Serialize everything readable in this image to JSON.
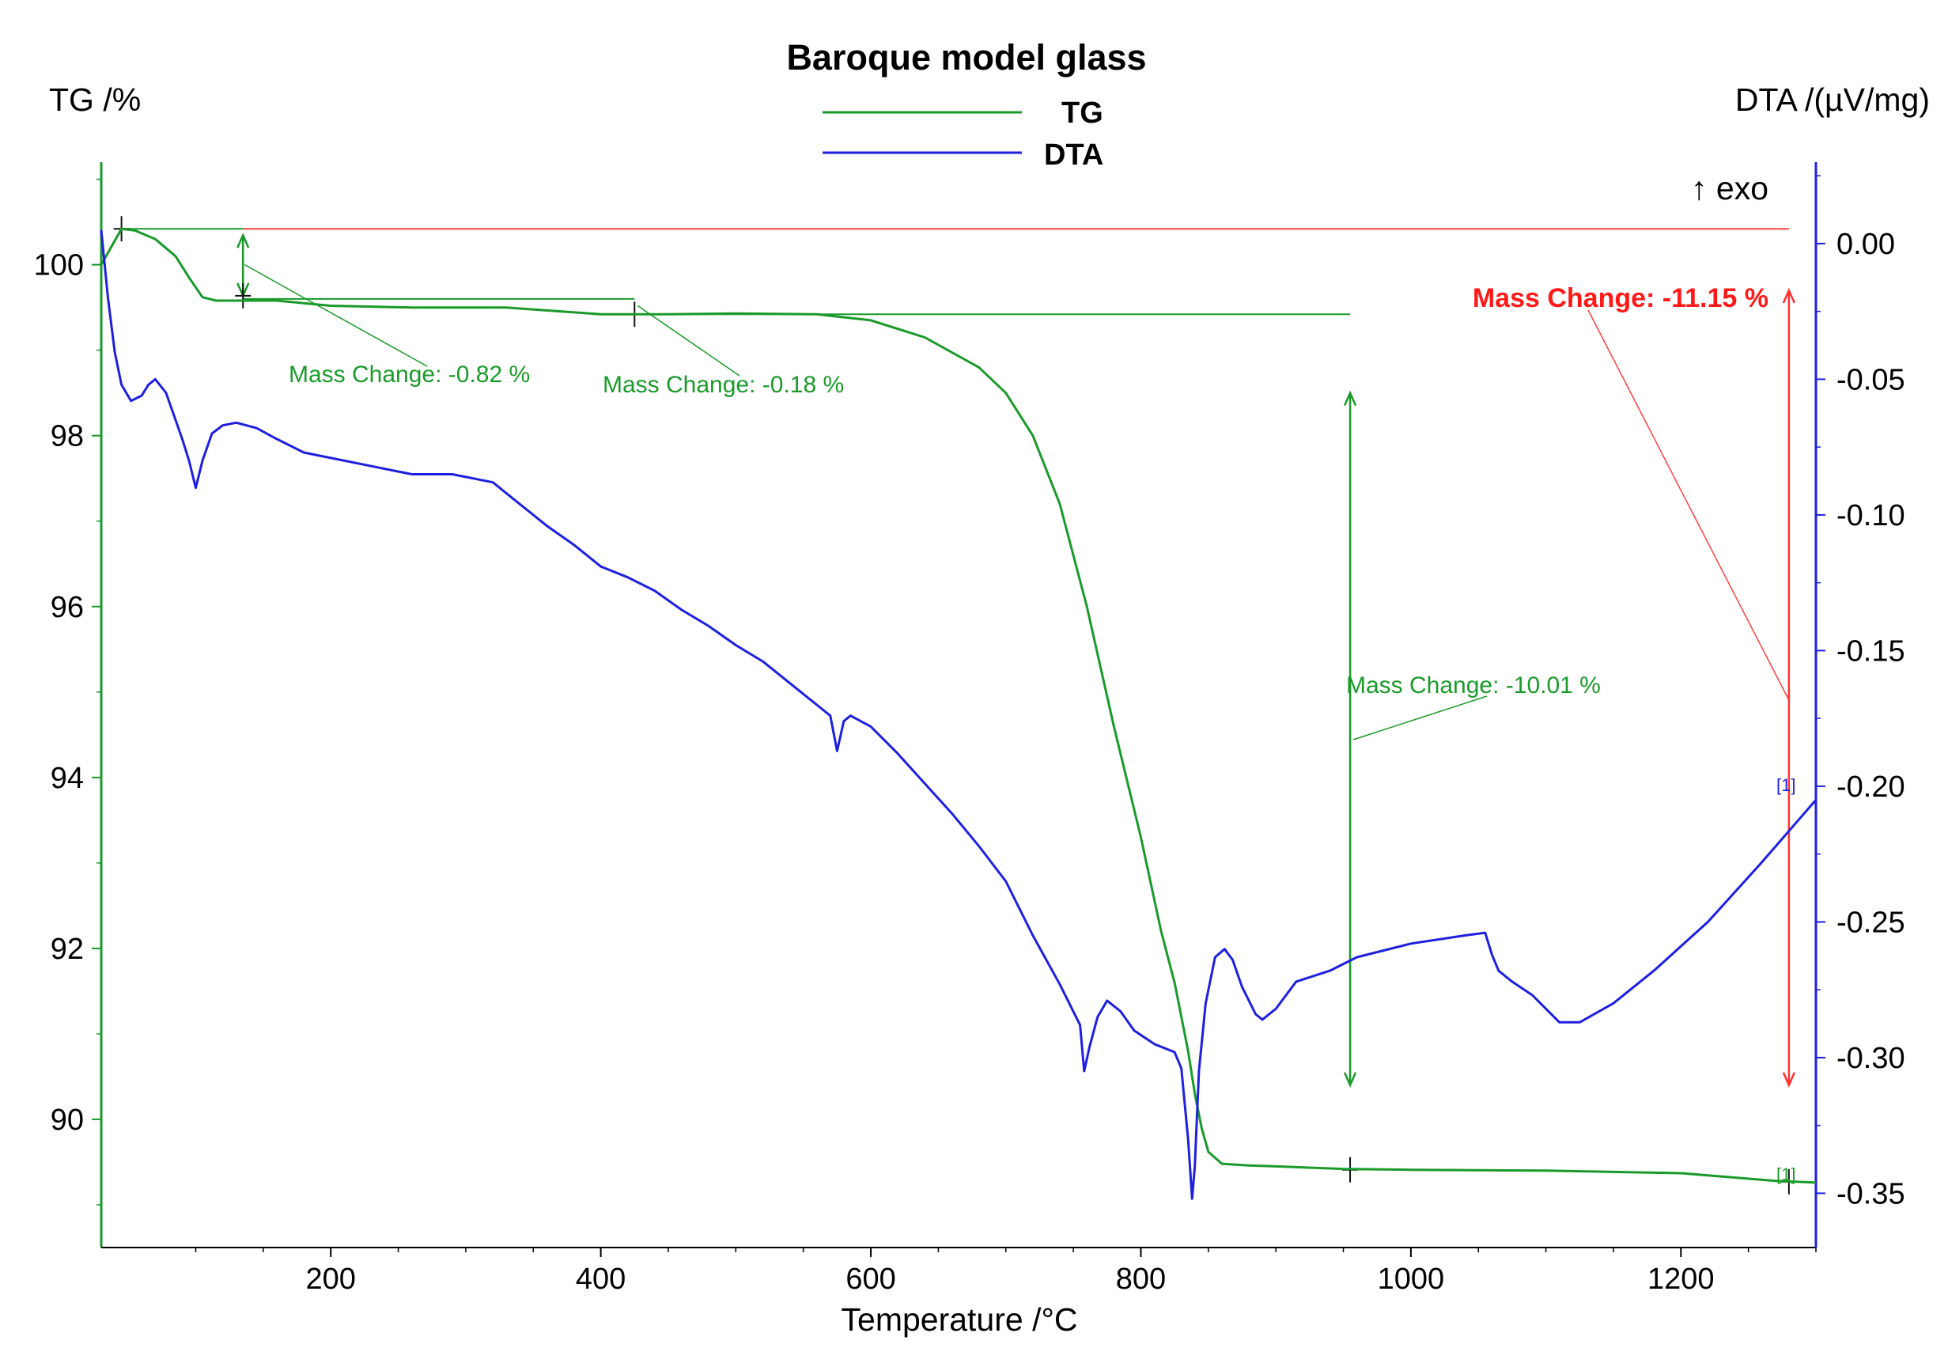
{
  "chart_data": {
    "type": "line",
    "title": "Baroque model glass",
    "xlabel": "Temperature /°C",
    "ylabel_left": "TG /%",
    "ylabel_right": "DTA /(µV/mg)",
    "exo_label": "↑ exo",
    "xlim": [
      30,
      1300
    ],
    "ylim_left": [
      88.5,
      101.2
    ],
    "ylim_right": [
      -0.37,
      0.03
    ],
    "x_ticks": [
      200,
      400,
      600,
      800,
      1000,
      1200
    ],
    "y_left_ticks": [
      90,
      92,
      94,
      96,
      98,
      100
    ],
    "y_right_ticks": [
      0.0,
      -0.05,
      -0.1,
      -0.15,
      -0.2,
      -0.25,
      -0.3,
      -0.35
    ],
    "y_right_tick_labels": [
      "0.00",
      "-0.05",
      "-0.10",
      "-0.15",
      "-0.20",
      "-0.25",
      "-0.30",
      "-0.35"
    ],
    "legend": [
      "TG",
      "DTA"
    ],
    "grid": false,
    "colors": {
      "TG": "#1a9a2a",
      "DTA": "#1f1fe0",
      "total": "#ff6666",
      "axis_left": "#1a9a2a",
      "axis_right": "#1f1fe0"
    },
    "series": [
      {
        "name": "TG",
        "axis": "left",
        "x": [
          30,
          45,
          55,
          70,
          85,
          95,
          105,
          115,
          130,
          160,
          200,
          260,
          330,
          400,
          450,
          500,
          560,
          600,
          640,
          680,
          700,
          720,
          740,
          760,
          780,
          800,
          815,
          825,
          835,
          840,
          845,
          850,
          860,
          880,
          900,
          950,
          1000,
          1100,
          1200,
          1270,
          1300
        ],
        "y": [
          100.0,
          100.42,
          100.4,
          100.3,
          100.1,
          99.85,
          99.62,
          99.58,
          99.58,
          99.58,
          99.52,
          99.5,
          99.5,
          99.42,
          99.42,
          99.43,
          99.42,
          99.35,
          99.15,
          98.8,
          98.5,
          98.0,
          97.2,
          96.0,
          94.6,
          93.3,
          92.2,
          91.6,
          90.8,
          90.3,
          89.9,
          89.62,
          89.48,
          89.46,
          89.45,
          89.42,
          89.41,
          89.4,
          89.37,
          89.28,
          89.26
        ]
      },
      {
        "name": "DTA",
        "axis": "right",
        "x": [
          30,
          35,
          40,
          45,
          52,
          60,
          65,
          70,
          78,
          90,
          95,
          100,
          105,
          112,
          120,
          130,
          145,
          160,
          180,
          200,
          230,
          260,
          290,
          320,
          340,
          360,
          380,
          400,
          420,
          440,
          460,
          480,
          500,
          520,
          540,
          560,
          570,
          575,
          580,
          585,
          600,
          620,
          640,
          660,
          680,
          700,
          720,
          740,
          755,
          758,
          762,
          768,
          775,
          785,
          795,
          810,
          825,
          830,
          835,
          838,
          840,
          843,
          848,
          855,
          862,
          868,
          875,
          885,
          890,
          900,
          915,
          940,
          960,
          1000,
          1040,
          1055,
          1060,
          1065,
          1075,
          1090,
          1110,
          1125,
          1150,
          1180,
          1220,
          1260,
          1300
        ],
        "y": [
          0.005,
          -0.02,
          -0.04,
          -0.052,
          -0.058,
          -0.056,
          -0.052,
          -0.05,
          -0.055,
          -0.072,
          -0.08,
          -0.09,
          -0.08,
          -0.07,
          -0.067,
          -0.066,
          -0.068,
          -0.072,
          -0.077,
          -0.079,
          -0.082,
          -0.085,
          -0.085,
          -0.088,
          -0.096,
          -0.104,
          -0.111,
          -0.119,
          -0.123,
          -0.128,
          -0.135,
          -0.141,
          -0.148,
          -0.154,
          -0.162,
          -0.17,
          -0.174,
          -0.187,
          -0.176,
          -0.174,
          -0.178,
          -0.188,
          -0.199,
          -0.21,
          -0.222,
          -0.235,
          -0.255,
          -0.273,
          -0.288,
          -0.305,
          -0.296,
          -0.285,
          -0.279,
          -0.283,
          -0.29,
          -0.295,
          -0.298,
          -0.304,
          -0.33,
          -0.352,
          -0.34,
          -0.305,
          -0.28,
          -0.263,
          -0.26,
          -0.264,
          -0.274,
          -0.284,
          -0.286,
          -0.282,
          -0.272,
          -0.268,
          -0.263,
          -0.258,
          -0.255,
          -0.254,
          -0.262,
          -0.268,
          -0.272,
          -0.277,
          -0.287,
          -0.287,
          -0.28,
          -0.268,
          -0.25,
          -0.228,
          -0.205
        ]
      }
    ],
    "annotations": [
      {
        "label": "Mass Change: -0.82 %",
        "color": "green",
        "from_x": 135,
        "from_y": 100.42,
        "to_y": 99.6
      },
      {
        "label": "Mass Change: -0.18 %",
        "color": "green",
        "from_x": 425,
        "from_y": 99.6,
        "to_y": 99.42
      },
      {
        "label": "Mass Change: -10.01 %",
        "color": "green",
        "from_x": 955,
        "from_y": 99.42,
        "to_y": 89.41
      },
      {
        "label": "Mass Change: -11.15 %",
        "color": "red",
        "from_x": 1280,
        "from_y": 100.42,
        "to_y": 89.27
      }
    ],
    "end_markers": {
      "dta": "[1]",
      "tg": "[1]"
    }
  }
}
